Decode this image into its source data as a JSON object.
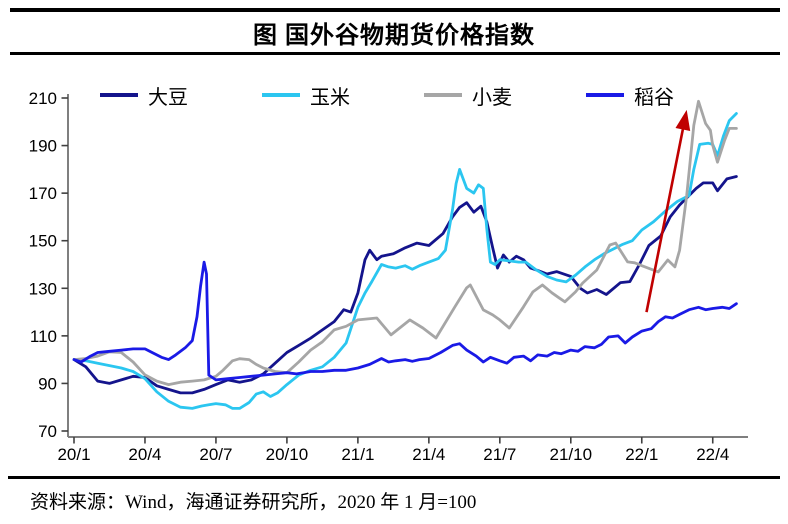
{
  "title": "图 国外谷物期货价格指数",
  "source_note": "资料来源：Wind，海通证券研究所，2020 年 1 月=100",
  "chart_data": {
    "type": "line",
    "title": "图 国外谷物期货价格指数",
    "x_axis": {
      "tick_labels": [
        "20/1",
        "20/4",
        "20/7",
        "20/10",
        "21/1",
        "21/4",
        "21/7",
        "21/10",
        "22/1",
        "22/4"
      ],
      "tick_positions_months": [
        0,
        3,
        6,
        9,
        12,
        15,
        18,
        21,
        24,
        27
      ],
      "range_months": [
        0,
        28.5
      ]
    },
    "y_axis": {
      "ticks": [
        70,
        90,
        110,
        130,
        150,
        170,
        190,
        210
      ],
      "range": [
        70,
        210
      ]
    },
    "grid": "off",
    "legend_position": "top",
    "index_base_note": "2020 年 1 月=100",
    "series": [
      {
        "key": "soybean",
        "name": "大豆",
        "color": "#14148C",
        "points": [
          [
            0,
            100
          ],
          [
            0.5,
            97
          ],
          [
            1,
            91
          ],
          [
            1.5,
            90
          ],
          [
            2,
            91.5
          ],
          [
            2.5,
            93
          ],
          [
            3,
            92.5
          ],
          [
            3.5,
            89
          ],
          [
            4,
            87.5
          ],
          [
            4.5,
            86
          ],
          [
            5,
            86
          ],
          [
            5.5,
            87.5
          ],
          [
            6,
            89.5
          ],
          [
            6.5,
            91.5
          ],
          [
            7,
            90.5
          ],
          [
            7.5,
            91.5
          ],
          [
            8,
            94
          ],
          [
            8.5,
            98.5
          ],
          [
            9,
            103
          ],
          [
            9.5,
            106
          ],
          [
            10,
            109
          ],
          [
            10.5,
            112.5
          ],
          [
            11,
            116
          ],
          [
            11.4,
            121
          ],
          [
            11.7,
            120
          ],
          [
            12,
            128
          ],
          [
            12.3,
            142
          ],
          [
            12.5,
            146
          ],
          [
            12.8,
            142
          ],
          [
            13,
            143.5
          ],
          [
            13.5,
            144.5
          ],
          [
            14,
            147
          ],
          [
            14.5,
            149
          ],
          [
            15,
            148
          ],
          [
            15.6,
            153
          ],
          [
            16,
            160
          ],
          [
            16.3,
            164
          ],
          [
            16.6,
            166
          ],
          [
            16.9,
            162
          ],
          [
            17.2,
            164.5
          ],
          [
            17.45,
            158
          ],
          [
            17.7,
            147
          ],
          [
            17.9,
            138.5
          ],
          [
            18.15,
            144
          ],
          [
            18.4,
            141
          ],
          [
            18.7,
            143.5
          ],
          [
            19,
            142
          ],
          [
            19.3,
            138.5
          ],
          [
            19.6,
            137.5
          ],
          [
            20,
            136
          ],
          [
            20.4,
            137
          ],
          [
            21,
            135
          ],
          [
            21.4,
            130
          ],
          [
            21.7,
            128
          ],
          [
            22.1,
            129.5
          ],
          [
            22.5,
            127.4
          ],
          [
            23.1,
            132.4
          ],
          [
            23.5,
            132.8
          ],
          [
            23.9,
            140
          ],
          [
            24.3,
            148
          ],
          [
            24.8,
            152
          ],
          [
            25.2,
            160
          ],
          [
            25.6,
            165
          ],
          [
            26,
            169
          ],
          [
            26.3,
            172
          ],
          [
            26.6,
            174.3
          ],
          [
            27,
            174.3
          ],
          [
            27.2,
            171
          ],
          [
            27.6,
            176
          ],
          [
            28,
            177
          ]
        ]
      },
      {
        "key": "corn",
        "name": "玉米",
        "color": "#2BC6F0",
        "points": [
          [
            0,
            100
          ],
          [
            0.5,
            99.5
          ],
          [
            1,
            98.5
          ],
          [
            1.5,
            97.5
          ],
          [
            2,
            96.5
          ],
          [
            2.5,
            95
          ],
          [
            3,
            92
          ],
          [
            3.5,
            86.5
          ],
          [
            4,
            82.5
          ],
          [
            4.5,
            80
          ],
          [
            5,
            79.5
          ],
          [
            5.4,
            80.5
          ],
          [
            5.7,
            81
          ],
          [
            6,
            81.5
          ],
          [
            6.4,
            81
          ],
          [
            6.7,
            79.5
          ],
          [
            7,
            79.5
          ],
          [
            7.4,
            82
          ],
          [
            7.7,
            85.5
          ],
          [
            8,
            86.5
          ],
          [
            8.3,
            84.5
          ],
          [
            8.6,
            86
          ],
          [
            9,
            89.5
          ],
          [
            9.5,
            93.5
          ],
          [
            10,
            95.5
          ],
          [
            10.5,
            97
          ],
          [
            11,
            101
          ],
          [
            11.5,
            107
          ],
          [
            12,
            122
          ],
          [
            12.3,
            128
          ],
          [
            12.6,
            133
          ],
          [
            13,
            140
          ],
          [
            13.3,
            139
          ],
          [
            13.6,
            138.5
          ],
          [
            14,
            139.5
          ],
          [
            14.3,
            138
          ],
          [
            14.6,
            139.5
          ],
          [
            15,
            141
          ],
          [
            15.4,
            142.5
          ],
          [
            15.7,
            146
          ],
          [
            16,
            163
          ],
          [
            16.15,
            174
          ],
          [
            16.3,
            180
          ],
          [
            16.6,
            172
          ],
          [
            16.9,
            170
          ],
          [
            17.1,
            173.5
          ],
          [
            17.3,
            172
          ],
          [
            17.45,
            155
          ],
          [
            17.6,
            141
          ],
          [
            17.8,
            140
          ],
          [
            18,
            142
          ],
          [
            18.4,
            141.5
          ],
          [
            18.8,
            141
          ],
          [
            19.1,
            141
          ],
          [
            19.5,
            138
          ],
          [
            20,
            135
          ],
          [
            20.4,
            133.5
          ],
          [
            20.8,
            132.7
          ],
          [
            21.2,
            135.5
          ],
          [
            21.6,
            139
          ],
          [
            22,
            142
          ],
          [
            22.4,
            144.5
          ],
          [
            22.8,
            146.5
          ],
          [
            23.2,
            148.5
          ],
          [
            23.6,
            150
          ],
          [
            24,
            154.5
          ],
          [
            24.5,
            158
          ],
          [
            25,
            162.5
          ],
          [
            25.5,
            166.5
          ],
          [
            26,
            169
          ],
          [
            26.2,
            180
          ],
          [
            26.45,
            190.5
          ],
          [
            26.8,
            191
          ],
          [
            27,
            190.5
          ],
          [
            27.2,
            185.8
          ],
          [
            27.45,
            194
          ],
          [
            27.7,
            200.5
          ],
          [
            28,
            203.5
          ]
        ]
      },
      {
        "key": "wheat",
        "name": "小麦",
        "color": "#A6A6A6",
        "points": [
          [
            0,
            100
          ],
          [
            0.5,
            100.5
          ],
          [
            1,
            101.5
          ],
          [
            1.5,
            103.3
          ],
          [
            2,
            103
          ],
          [
            2.5,
            99
          ],
          [
            3,
            93.6
          ],
          [
            3.5,
            91
          ],
          [
            4,
            89.5
          ],
          [
            4.5,
            90.5
          ],
          [
            5,
            91
          ],
          [
            5.5,
            91.5
          ],
          [
            6,
            93
          ],
          [
            6.3,
            95.5
          ],
          [
            6.7,
            99.5
          ],
          [
            7,
            100.4
          ],
          [
            7.4,
            100
          ],
          [
            7.7,
            98
          ],
          [
            8,
            96.5
          ],
          [
            8.5,
            95
          ],
          [
            9,
            94.5
          ],
          [
            9.5,
            99
          ],
          [
            10,
            104
          ],
          [
            10.5,
            107.5
          ],
          [
            11,
            112.5
          ],
          [
            11.5,
            114
          ],
          [
            12,
            116.7
          ],
          [
            12.8,
            117.5
          ],
          [
            13.4,
            110.4
          ],
          [
            14.2,
            116.7
          ],
          [
            14.75,
            113.3
          ],
          [
            15.3,
            109.1
          ],
          [
            16.1,
            122.2
          ],
          [
            16.6,
            130.2
          ],
          [
            16.75,
            131.4
          ],
          [
            17.3,
            120.9
          ],
          [
            17.7,
            118.8
          ],
          [
            18,
            116.7
          ],
          [
            18.4,
            113.3
          ],
          [
            19,
            122.2
          ],
          [
            19.4,
            128.5
          ],
          [
            19.8,
            131.4
          ],
          [
            20.2,
            128.1
          ],
          [
            20.5,
            126
          ],
          [
            20.75,
            124.3
          ],
          [
            21.2,
            128.5
          ],
          [
            21.5,
            132.2
          ],
          [
            22.1,
            137.7
          ],
          [
            22.65,
            148.2
          ],
          [
            22.9,
            149
          ],
          [
            23.4,
            141.1
          ],
          [
            23.7,
            140.7
          ],
          [
            24,
            139.5
          ],
          [
            24.7,
            136.9
          ],
          [
            25.1,
            141.9
          ],
          [
            25.4,
            139
          ],
          [
            25.6,
            146
          ],
          [
            25.9,
            169
          ],
          [
            26.2,
            198.5
          ],
          [
            26.4,
            208.6
          ],
          [
            26.7,
            199.3
          ],
          [
            26.9,
            196.4
          ],
          [
            27,
            190.1
          ],
          [
            27.2,
            183
          ],
          [
            27.5,
            192.2
          ],
          [
            27.7,
            197.2
          ],
          [
            28,
            197.2
          ]
        ]
      },
      {
        "key": "rice",
        "name": "稻谷",
        "color": "#1A1AE6",
        "points": [
          [
            0,
            100
          ],
          [
            0.3,
            99
          ],
          [
            0.7,
            101.5
          ],
          [
            1,
            103
          ],
          [
            1.5,
            103.5
          ],
          [
            2,
            104
          ],
          [
            2.5,
            104.5
          ],
          [
            3,
            104.5
          ],
          [
            3.3,
            103
          ],
          [
            3.7,
            101
          ],
          [
            4,
            100
          ],
          [
            4.3,
            102
          ],
          [
            4.7,
            105
          ],
          [
            5,
            108
          ],
          [
            5.2,
            118
          ],
          [
            5.35,
            131
          ],
          [
            5.5,
            141
          ],
          [
            5.6,
            136
          ],
          [
            5.7,
            93.5
          ],
          [
            6,
            91.5
          ],
          [
            6.5,
            92
          ],
          [
            7,
            92.5
          ],
          [
            7.5,
            93
          ],
          [
            8,
            93.5
          ],
          [
            8.5,
            94
          ],
          [
            9,
            94.5
          ],
          [
            9.4,
            94
          ],
          [
            9.7,
            94.5
          ],
          [
            10,
            95
          ],
          [
            10.5,
            95
          ],
          [
            11,
            95.5
          ],
          [
            11.5,
            95.5
          ],
          [
            12,
            96.5
          ],
          [
            12.5,
            98
          ],
          [
            13,
            100.5
          ],
          [
            13.3,
            99
          ],
          [
            13.6,
            99.5
          ],
          [
            14,
            100
          ],
          [
            14.3,
            99.3
          ],
          [
            14.6,
            100
          ],
          [
            15,
            100.5
          ],
          [
            15.5,
            103
          ],
          [
            16,
            106
          ],
          [
            16.3,
            106.7
          ],
          [
            16.6,
            104
          ],
          [
            17,
            101.5
          ],
          [
            17.3,
            99
          ],
          [
            17.6,
            101
          ],
          [
            18,
            99.5
          ],
          [
            18.3,
            98.5
          ],
          [
            18.6,
            101
          ],
          [
            19,
            101.5
          ],
          [
            19.3,
            99.5
          ],
          [
            19.6,
            102
          ],
          [
            20,
            101.5
          ],
          [
            20.3,
            103
          ],
          [
            20.6,
            102.5
          ],
          [
            21,
            104
          ],
          [
            21.3,
            103.5
          ],
          [
            21.6,
            105.5
          ],
          [
            22,
            105
          ],
          [
            22.3,
            106.5
          ],
          [
            22.6,
            109.5
          ],
          [
            23,
            110
          ],
          [
            23.3,
            107
          ],
          [
            23.6,
            109.5
          ],
          [
            24,
            112
          ],
          [
            24.4,
            113
          ],
          [
            24.7,
            116
          ],
          [
            25,
            118
          ],
          [
            25.3,
            117.5
          ],
          [
            25.6,
            119
          ],
          [
            26,
            121
          ],
          [
            26.4,
            122
          ],
          [
            26.7,
            121
          ],
          [
            27,
            121.5
          ],
          [
            27.4,
            122
          ],
          [
            27.7,
            121.5
          ],
          [
            28,
            123.5
          ]
        ]
      }
    ],
    "annotation_arrow": {
      "color": "#C00000",
      "from": [
        24.2,
        120
      ],
      "to": [
        25.9,
        205
      ]
    }
  }
}
